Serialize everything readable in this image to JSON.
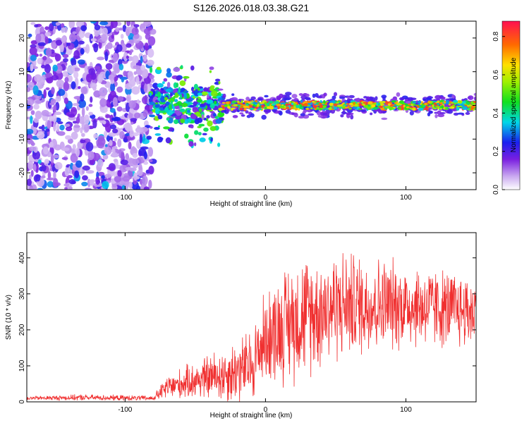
{
  "title": "S126.2026.018.03.38.G21",
  "chart_data": [
    {
      "type": "heatmap",
      "name": "spectrogram",
      "xlabel": "Height of straight line (km)",
      "ylabel": "Frequency (Hz)",
      "xlim": [
        -170,
        150
      ],
      "ylim": [
        -25,
        25
      ],
      "xticks": [
        -100,
        0,
        100
      ],
      "yticks": [
        -20,
        -10,
        0,
        10,
        20
      ],
      "description_regions": [
        {
          "x_range": [
            -170,
            -80
          ],
          "content": "broadband noise, low amplitude (0.1-0.3)"
        },
        {
          "x_range": [
            -80,
            -30
          ],
          "content": "scattered signal near 0 Hz, amplitude 0.2-0.6"
        },
        {
          "x_range": [
            -30,
            150
          ],
          "content": "narrow signal line near 0 Hz, amplitude 0.6-0.9"
        }
      ],
      "colorbar": {
        "label": "Normalized spectral amplitude",
        "ticks": [
          0.0,
          0.2,
          0.4,
          0.6,
          0.8
        ],
        "tick_labels": [
          "0.0",
          "0.2",
          "0.4",
          "0.6",
          "0.8"
        ],
        "range": [
          0.0,
          0.88
        ]
      }
    },
    {
      "type": "line",
      "name": "snr",
      "xlabel": "Height of straight line (km)",
      "ylabel": "SNR (10 * v/v)",
      "xlim": [
        -170,
        150
      ],
      "ylim": [
        0,
        470
      ],
      "xticks": [
        -100,
        0,
        100
      ],
      "yticks": [
        0,
        100,
        200,
        300,
        400
      ],
      "series": [
        {
          "name": "SNR",
          "color": "#f03030",
          "trend": [
            {
              "x": -170,
              "mean": 10,
              "spread": 6
            },
            {
              "x": -130,
              "mean": 12,
              "spread": 10
            },
            {
              "x": -80,
              "mean": 10,
              "spread": 8
            },
            {
              "x": -70,
              "mean": 40,
              "spread": 40
            },
            {
              "x": -50,
              "mean": 60,
              "spread": 60
            },
            {
              "x": -25,
              "mean": 80,
              "spread": 100
            },
            {
              "x": -10,
              "mean": 100,
              "spread": 120
            },
            {
              "x": 0,
              "mean": 180,
              "spread": 150
            },
            {
              "x": 20,
              "mean": 230,
              "spread": 200
            },
            {
              "x": 50,
              "mean": 270,
              "spread": 180
            },
            {
              "x": 100,
              "mean": 270,
              "spread": 140
            },
            {
              "x": 150,
              "mean": 250,
              "spread": 120
            }
          ]
        }
      ]
    }
  ]
}
